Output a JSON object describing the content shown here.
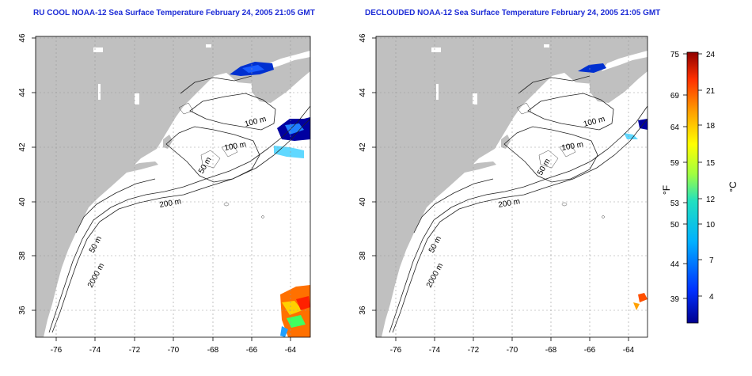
{
  "panels": [
    {
      "title": "RU COOL NOAA-12 Sea Surface Temperature February 24, 2005 21:05 GMT",
      "contour_labels": [
        "100 m",
        "100 m",
        "50 m",
        "200 m",
        "50 m",
        "2000 m"
      ]
    },
    {
      "title": "DECLOUDED NOAA-12 Sea Surface Temperature February 24, 2005 21:05 GMT",
      "contour_labels": [
        "100 m",
        "100 m",
        "50 m",
        "200 m",
        "50 m",
        "2000 m"
      ]
    }
  ],
  "axes": {
    "x_ticks": [
      "-76",
      "-74",
      "-72",
      "-70",
      "-68",
      "-66",
      "-64"
    ],
    "y_ticks": [
      "46",
      "44",
      "42",
      "40",
      "38",
      "36"
    ]
  },
  "colorbar": {
    "fahrenheit_label": "°F",
    "celsius_label": "°C",
    "fahrenheit_ticks": [
      "75",
      "69",
      "64",
      "59",
      "53",
      "50",
      "44",
      "39"
    ],
    "celsius_ticks": [
      "24",
      "21",
      "18",
      "15",
      "12",
      "10",
      "7",
      "4"
    ]
  },
  "colors": {
    "land": "#c0c0c0",
    "ocean": "#ffffff",
    "title": "#1c2bd6",
    "grid": "#999999"
  }
}
